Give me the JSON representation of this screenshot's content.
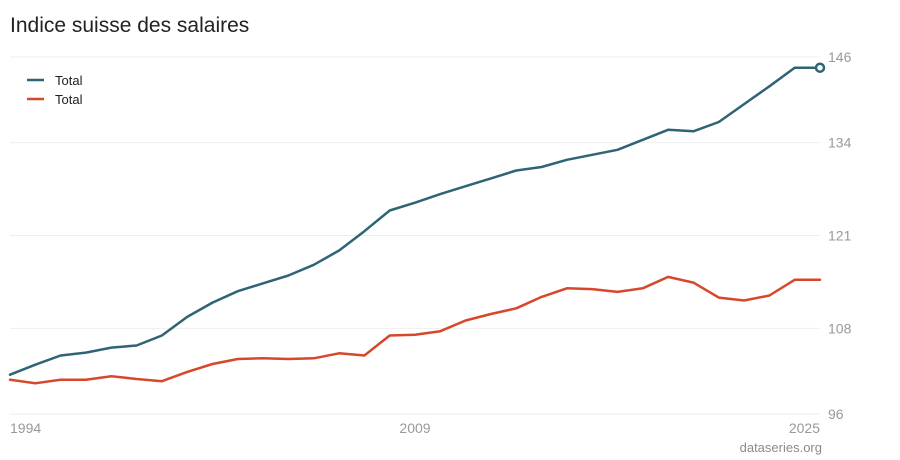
{
  "title": "Indice suisse des salaires",
  "source": "dataseries.org",
  "chart_data": {
    "type": "line",
    "title": "Indice suisse des salaires",
    "xlabel": "",
    "ylabel": "",
    "x": [
      1993,
      1994,
      1995,
      1996,
      1997,
      1998,
      1999,
      2000,
      2001,
      2002,
      2003,
      2004,
      2005,
      2006,
      2007,
      2008,
      2009,
      2010,
      2011,
      2012,
      2013,
      2014,
      2015,
      2016,
      2017,
      2018,
      2019,
      2020,
      2021,
      2022,
      2023,
      2024,
      2025
    ],
    "x_ticks": [
      "1994",
      "2009",
      "2025"
    ],
    "y_ticks": [
      96,
      108,
      121,
      134,
      146
    ],
    "ylim": [
      96,
      146
    ],
    "grid": true,
    "legend_position": "top-left",
    "y_axis_position": "right",
    "series": [
      {
        "name": "Total",
        "color": "#2e6475",
        "values": [
          101.5,
          102.9,
          104.2,
          104.6,
          105.3,
          105.6,
          107.0,
          109.6,
          111.6,
          113.2,
          114.3,
          115.4,
          116.9,
          118.9,
          121.6,
          124.5,
          125.6,
          126.8,
          127.9,
          129.0,
          130.1,
          130.6,
          131.6,
          132.3,
          133.0,
          134.4,
          135.8,
          135.6,
          136.9,
          139.4,
          141.9,
          144.5,
          144.5
        ],
        "end_marker": true
      },
      {
        "name": "Total",
        "color": "#d6472b",
        "values": [
          100.8,
          100.3,
          100.8,
          100.8,
          101.3,
          100.9,
          100.6,
          101.9,
          103.0,
          103.7,
          103.8,
          103.7,
          103.8,
          104.5,
          104.2,
          107.0,
          107.1,
          107.6,
          109.1,
          110.0,
          110.8,
          112.4,
          113.6,
          113.5,
          113.1,
          113.6,
          115.2,
          114.4,
          112.3,
          111.9,
          112.6,
          114.8,
          114.8
        ]
      }
    ]
  }
}
